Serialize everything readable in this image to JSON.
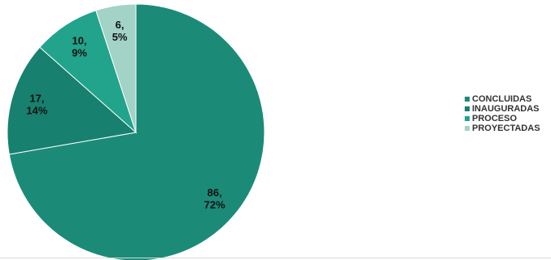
{
  "chart_data": {
    "type": "pie",
    "categories": [
      "CONCLUIDAS",
      "INAUGURADAS",
      "PROCESO",
      "PROYECTADAS"
    ],
    "values": [
      86,
      17,
      10,
      6
    ],
    "percentages": [
      "72%",
      "14%",
      "9%",
      "5%"
    ],
    "colors": [
      "#1b8b78",
      "#17806e",
      "#22a38c",
      "#a3d2c6"
    ],
    "start_angle_deg": 0,
    "direction": "clockwise",
    "legend_position": "right"
  },
  "legend": {
    "items": [
      {
        "label": "CONCLUIDAS",
        "color": "#1b8b78"
      },
      {
        "label": "INAUGURADAS",
        "color": "#17806e"
      },
      {
        "label": "PROCESO",
        "color": "#22a38c"
      },
      {
        "label": "PROYECTADAS",
        "color": "#a3d2c6"
      }
    ]
  }
}
